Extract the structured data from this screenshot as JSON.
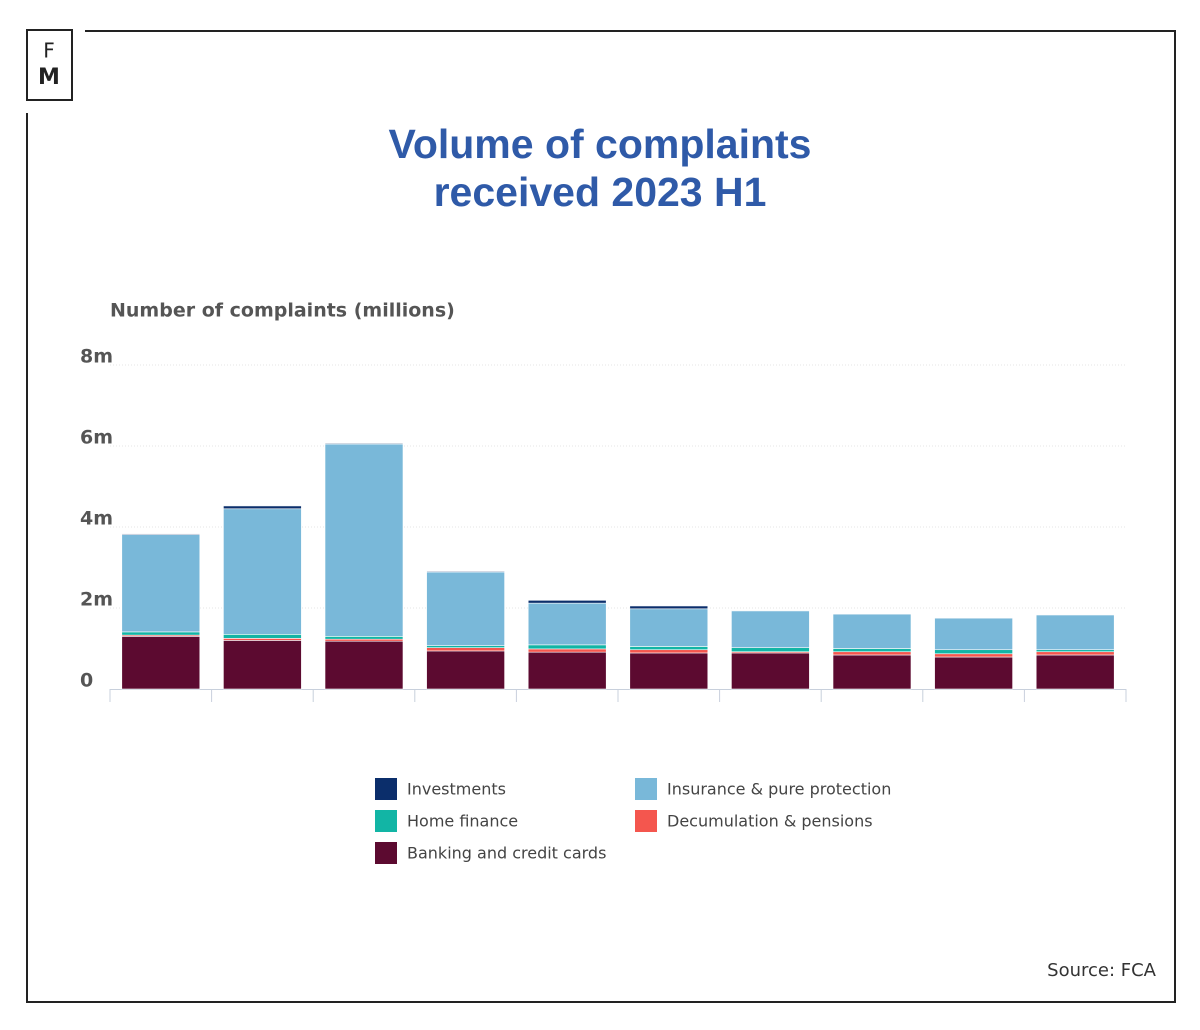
{
  "logo": {
    "top": "F",
    "bottom": "M"
  },
  "chart_data": {
    "type": "stacked_bar",
    "title": "Volume of complaints received 2023 H1",
    "y_label": "Number of complaints (millions)",
    "source": "Source: FCA",
    "categories": [
      null,
      null,
      null,
      null,
      null,
      null,
      null,
      null,
      null,
      null
    ],
    "series": [
      {
        "name": "Investments",
        "color": "#0b2e6b",
        "values": [
          0.02,
          0.07,
          0.02,
          0.02,
          0.07,
          0.07,
          0.01,
          0.01,
          0.01,
          0.01
        ]
      },
      {
        "name": "Insurance & pure protection",
        "color": "#79b8d9",
        "values": [
          2.4,
          3.1,
          4.75,
          1.82,
          1.03,
          0.93,
          0.91,
          0.85,
          0.78,
          0.86
        ]
      },
      {
        "name": "Home finance",
        "color": "#12b5a5",
        "values": [
          0.08,
          0.1,
          0.07,
          0.05,
          0.1,
          0.08,
          0.1,
          0.08,
          0.1,
          0.05
        ]
      },
      {
        "name": "Decumulation & pensions",
        "color": "#f4564e",
        "values": [
          0.03,
          0.05,
          0.05,
          0.08,
          0.08,
          0.08,
          0.03,
          0.08,
          0.08,
          0.08
        ]
      },
      {
        "name": "Banking and credit cards",
        "color": "#5c0a30",
        "values": [
          1.3,
          1.2,
          1.18,
          0.94,
          0.91,
          0.89,
          0.89,
          0.84,
          0.79,
          0.84
        ]
      }
    ],
    "ylim": [
      0,
      8
    ],
    "yticks": [
      0,
      {
        "value": 2,
        "label": "2m"
      },
      {
        "value": 4,
        "label": "4m"
      },
      {
        "value": 6,
        "label": "6m"
      },
      {
        "value": 8,
        "label": "8m"
      }
    ],
    "grid": true
  }
}
